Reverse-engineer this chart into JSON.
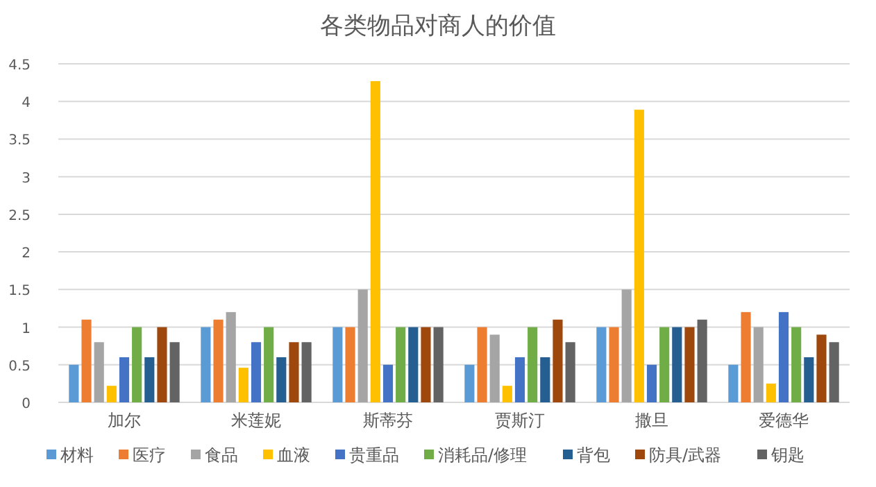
{
  "chart_data": {
    "type": "bar",
    "title": "各类物品对商人的价值",
    "categories": [
      "加尔",
      "米莲妮",
      "斯蒂芬",
      "贾斯汀",
      "撒旦",
      "爱德华"
    ],
    "series": [
      {
        "name": "材料",
        "color": "#5b9bd5",
        "values": [
          0.5,
          1,
          1,
          0.5,
          1,
          0.5
        ]
      },
      {
        "name": "医疗",
        "color": "#ed7d31",
        "values": [
          1.1,
          1.1,
          1,
          1,
          1,
          1.2
        ]
      },
      {
        "name": "食品",
        "color": "#a5a5a5",
        "values": [
          0.8,
          1.2,
          1.5,
          0.9,
          1.5,
          1
        ]
      },
      {
        "name": "血液",
        "color": "#ffc000",
        "values": [
          0.22,
          0.46,
          4.27,
          0.22,
          3.89,
          0.25
        ]
      },
      {
        "name": "贵重品",
        "color": "#4472c4",
        "values": [
          0.6,
          0.8,
          0.5,
          0.6,
          0.5,
          1.2
        ]
      },
      {
        "name": "消耗品/修理",
        "color": "#70ad47",
        "values": [
          1,
          1,
          1,
          1,
          1,
          1
        ]
      },
      {
        "name": "背包",
        "color": "#255e91",
        "values": [
          0.6,
          0.6,
          1,
          0.6,
          1,
          0.6
        ]
      },
      {
        "name": "防具/武器",
        "color": "#9e480e",
        "values": [
          1,
          0.8,
          1,
          1.1,
          1,
          0.9
        ]
      },
      {
        "name": "钥匙",
        "color": "#636363",
        "values": [
          0.8,
          0.8,
          1,
          0.8,
          1.1,
          0.8
        ]
      }
    ],
    "ylim": [
      0,
      4.5
    ],
    "yticks": [
      0,
      0.5,
      1,
      1.5,
      2,
      2.5,
      3,
      3.5,
      4,
      4.5
    ],
    "grid": "y",
    "legend": "bottom"
  }
}
